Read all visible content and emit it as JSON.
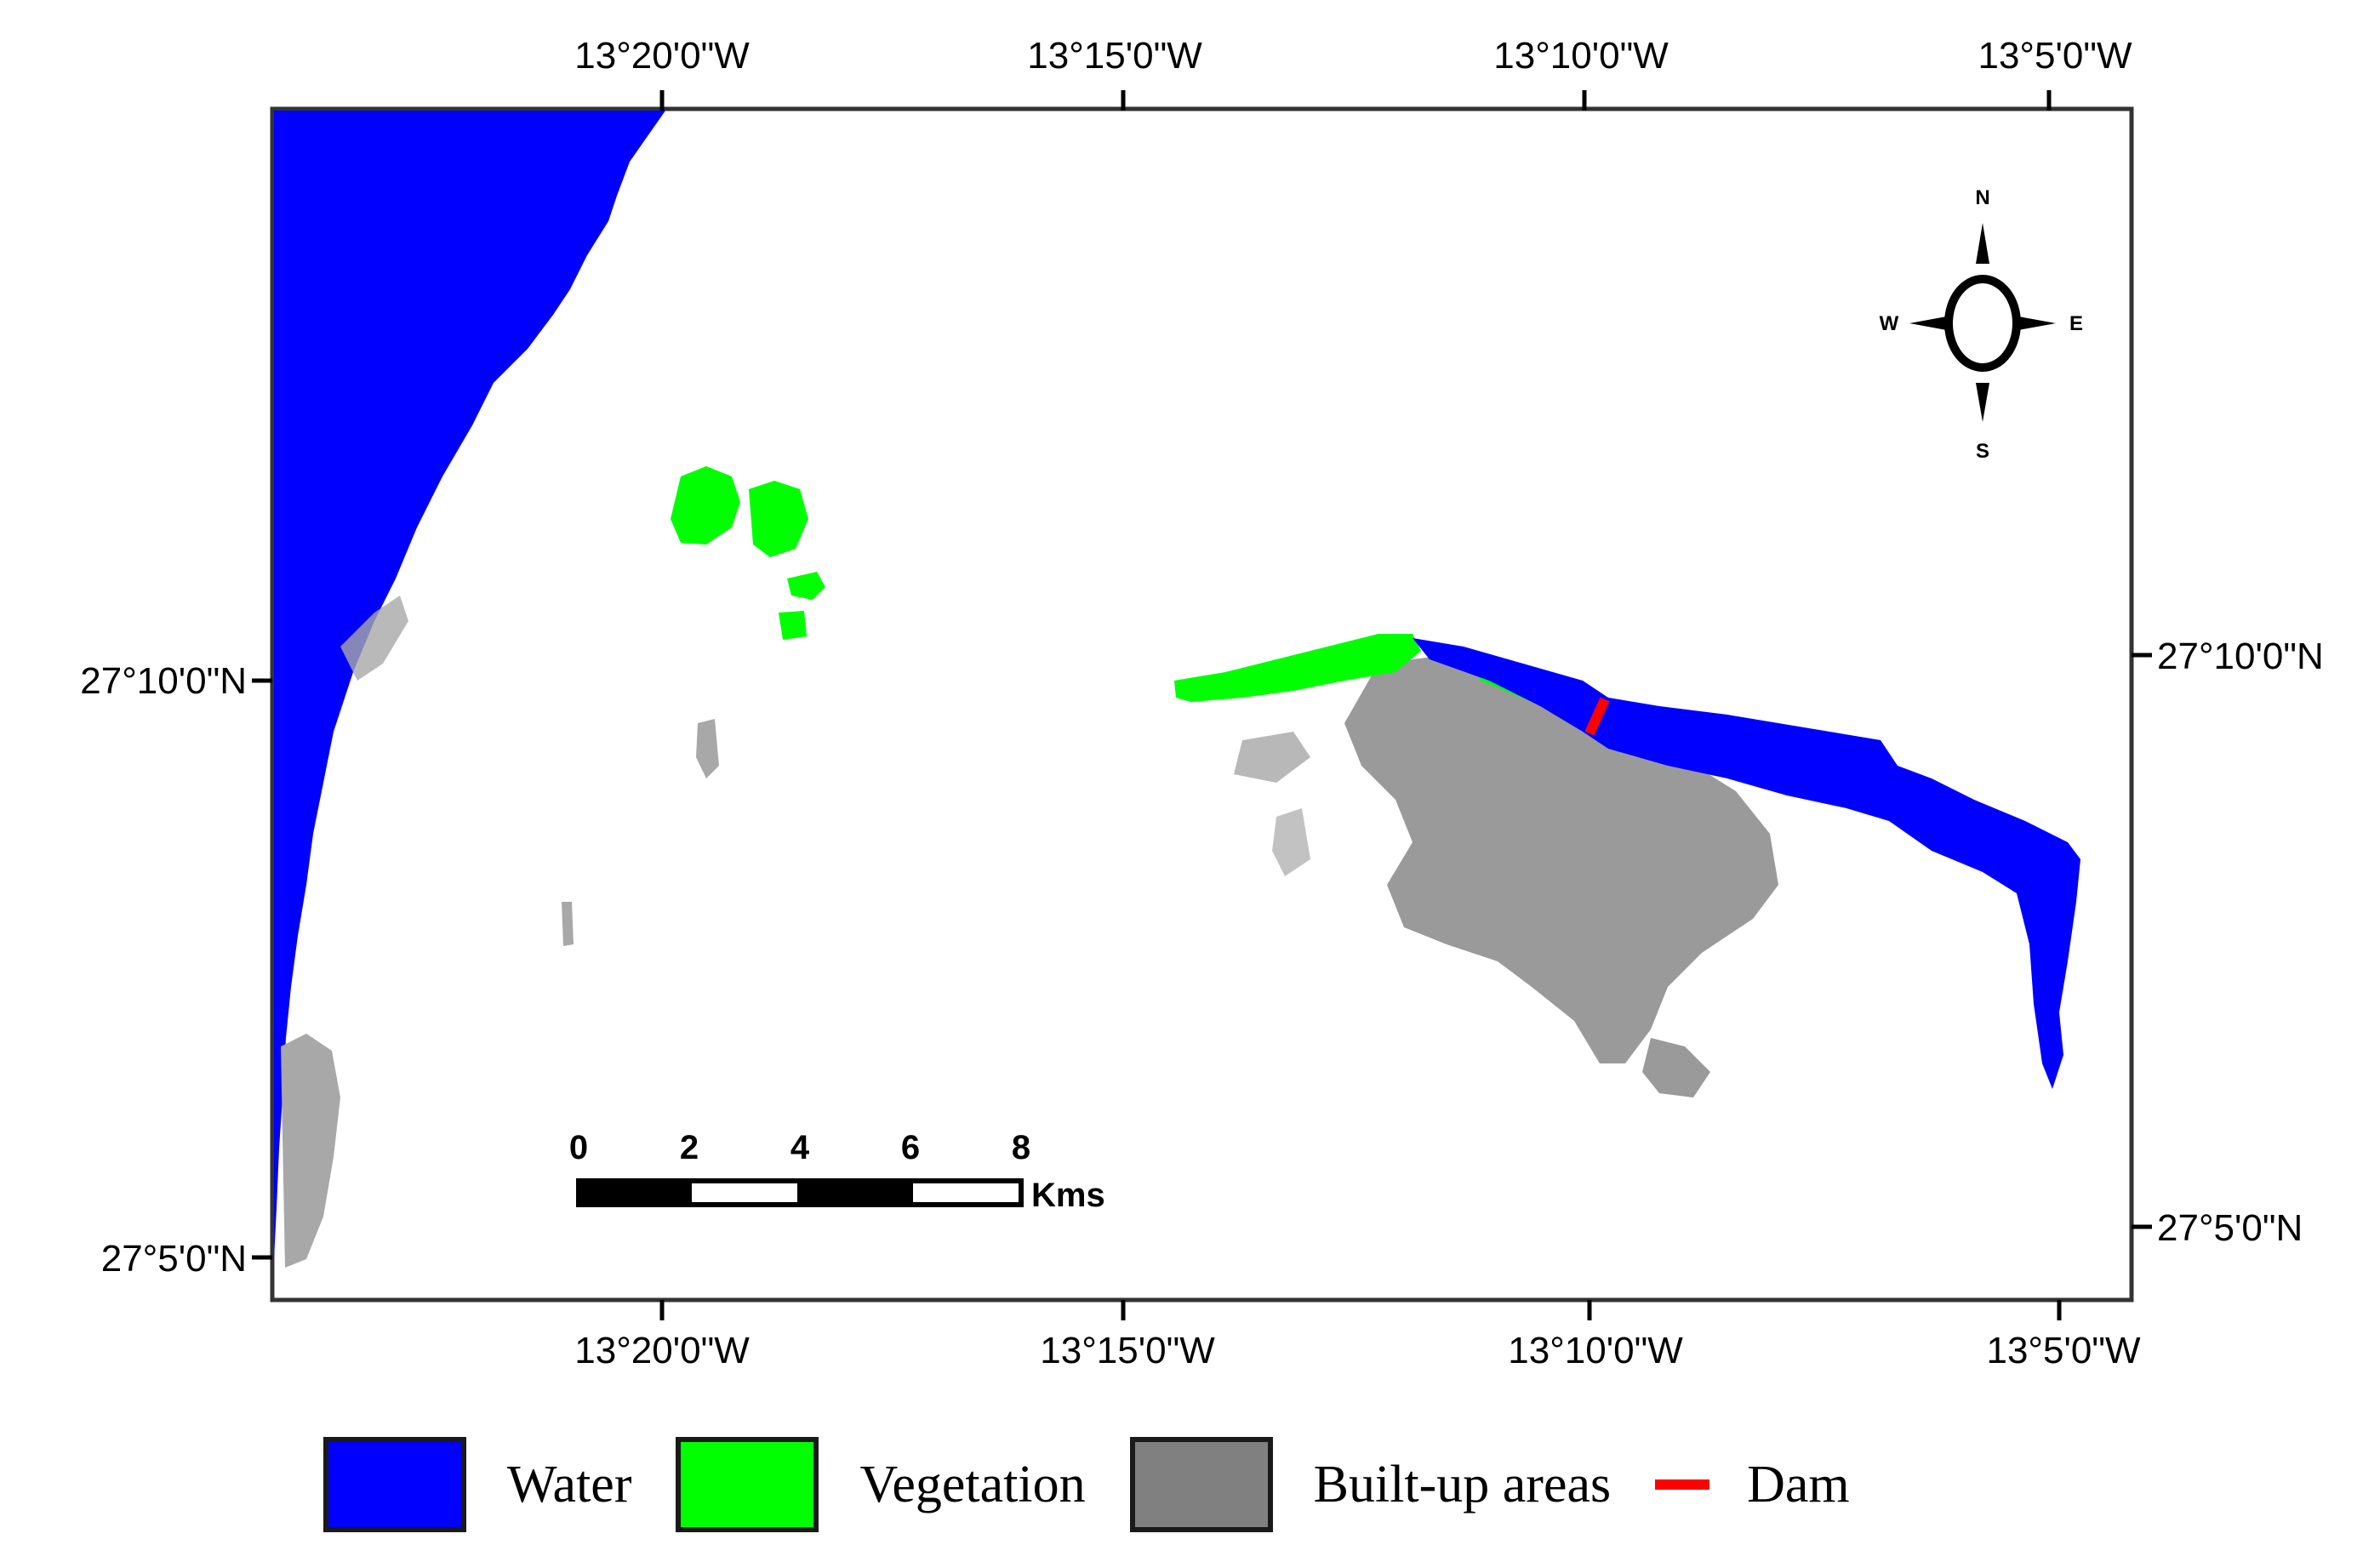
{
  "map": {
    "top_longitudes": [
      "13°20'0\"W",
      "13°15'0\"W",
      "13°10'0\"W",
      "13°5'0\"W"
    ],
    "bottom_longitudes": [
      "13°20'0\"W",
      "13°15'0\"W",
      "13°10'0\"W",
      "13°5'0\"W"
    ],
    "left_latitudes": [
      "27°10'0\"N",
      "27°5'0\"N"
    ],
    "right_latitudes": [
      "27°10'0\"N",
      "27°5'0\"N"
    ],
    "compass": {
      "n": "N",
      "s": "S",
      "e": "E",
      "w": "W"
    },
    "scale_bar": {
      "ticks": [
        "0",
        "2",
        "4",
        "6",
        "8"
      ],
      "unit": "Kms"
    }
  },
  "legend": {
    "items": [
      {
        "label": "Water",
        "color": "#0000ff"
      },
      {
        "label": "Vegetation",
        "color": "#00ff00"
      },
      {
        "label": "Built-up areas",
        "color": "#808080"
      },
      {
        "label": "Dam",
        "color": "#ff0000"
      }
    ]
  },
  "colors": {
    "water": "#0000ff",
    "vegetation": "#00ff00",
    "built_up": "#909090",
    "dam": "#ff0000",
    "frame": "#000000"
  }
}
